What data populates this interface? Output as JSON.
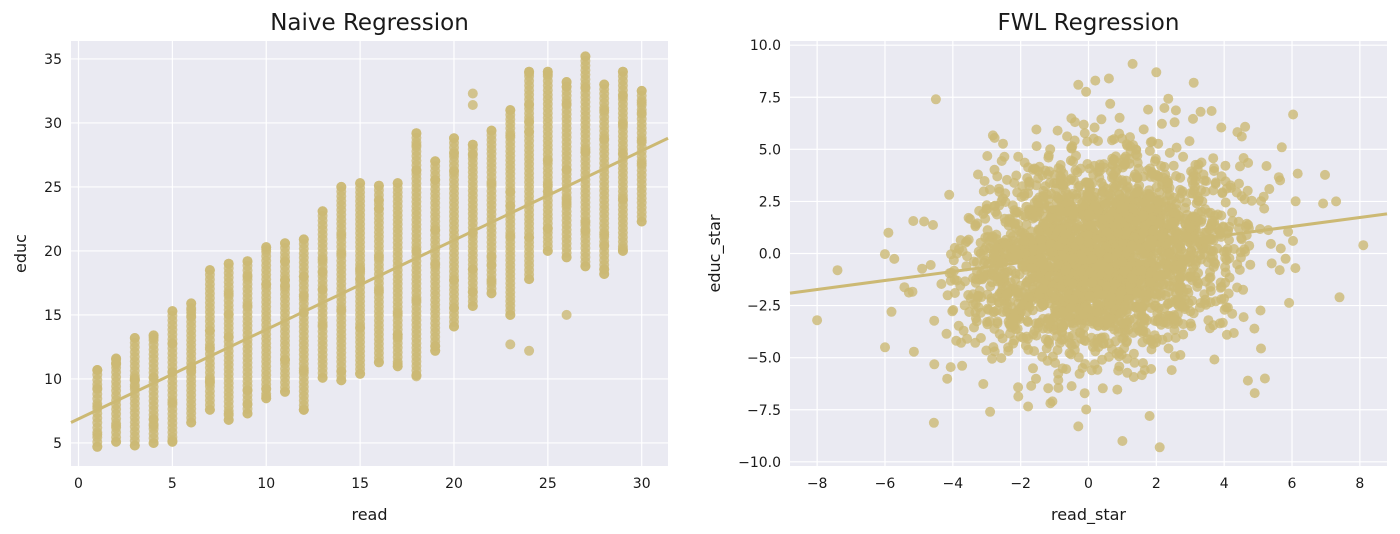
{
  "chart_data": [
    {
      "type": "scatter",
      "title": "Naive Regression",
      "xlabel": "read",
      "ylabel": "educ",
      "xlim": [
        -0.4,
        31.4
      ],
      "ylim": [
        3.2,
        36.4
      ],
      "xticks": [
        0,
        5,
        10,
        15,
        20,
        25,
        30
      ],
      "yticks": [
        5,
        10,
        15,
        20,
        25,
        30,
        35
      ],
      "xtick_labels": [
        "0",
        "5",
        "10",
        "15",
        "20",
        "25",
        "30"
      ],
      "ytick_labels": [
        "5",
        "10",
        "15",
        "20",
        "25",
        "30",
        "35"
      ],
      "grid": true,
      "point_color": "#CCB974",
      "regression_line": {
        "x": [
          -0.4,
          31.4
        ],
        "y": [
          6.6,
          28.8
        ]
      },
      "columns": [
        {
          "x": 1,
          "y": [
            4.7,
            10.7
          ]
        },
        {
          "x": 2,
          "y": [
            5.1,
            11.6
          ]
        },
        {
          "x": 3,
          "y": [
            4.8,
            13.2
          ]
        },
        {
          "x": 4,
          "y": [
            5.0,
            13.4
          ]
        },
        {
          "x": 5,
          "y": [
            5.1,
            15.3
          ]
        },
        {
          "x": 6,
          "y": [
            6.6,
            15.9
          ]
        },
        {
          "x": 7,
          "y": [
            7.6,
            18.5
          ]
        },
        {
          "x": 8,
          "y": [
            6.8,
            19.0
          ]
        },
        {
          "x": 9,
          "y": [
            7.3,
            19.2
          ]
        },
        {
          "x": 10,
          "y": [
            8.5,
            20.3
          ]
        },
        {
          "x": 11,
          "y": [
            9.0,
            20.6
          ]
        },
        {
          "x": 12,
          "y": [
            7.6,
            20.9
          ]
        },
        {
          "x": 13,
          "y": [
            10.1,
            23.1
          ]
        },
        {
          "x": 14,
          "y": [
            9.9,
            25.0
          ]
        },
        {
          "x": 15,
          "y": [
            10.4,
            25.3
          ]
        },
        {
          "x": 16,
          "y": [
            11.3,
            25.1
          ]
        },
        {
          "x": 17,
          "y": [
            11.0,
            25.3
          ]
        },
        {
          "x": 18,
          "y": [
            10.3,
            29.2
          ]
        },
        {
          "x": 19,
          "y": [
            12.2,
            27.0
          ]
        },
        {
          "x": 20,
          "y": [
            14.1,
            28.8
          ]
        },
        {
          "x": 21,
          "y": [
            15.7,
            28.3
          ]
        },
        {
          "x": 22,
          "y": [
            16.7,
            29.4
          ]
        },
        {
          "x": 23,
          "y": [
            15.0,
            31.0
          ]
        },
        {
          "x": 24,
          "y": [
            17.8,
            34.0
          ]
        },
        {
          "x": 25,
          "y": [
            20.0,
            34.0
          ]
        },
        {
          "x": 26,
          "y": [
            19.5,
            33.2
          ]
        },
        {
          "x": 27,
          "y": [
            18.8,
            35.2
          ]
        },
        {
          "x": 28,
          "y": [
            18.2,
            33.0
          ]
        },
        {
          "x": 29,
          "y": [
            20.0,
            34.0
          ]
        },
        {
          "x": 30,
          "y": [
            22.3,
            32.5
          ]
        }
      ],
      "extra_points": [
        {
          "x": 24,
          "y": 33.9
        },
        {
          "x": 24,
          "y": 12.2
        },
        {
          "x": 23,
          "y": 12.7
        },
        {
          "x": 26,
          "y": 15.0
        },
        {
          "x": 21,
          "y": 31.4
        },
        {
          "x": 25,
          "y": 33.8
        },
        {
          "x": 26,
          "y": 31.5
        },
        {
          "x": 27,
          "y": 32.8
        },
        {
          "x": 28,
          "y": 31.0
        },
        {
          "x": 29,
          "y": 32.1
        },
        {
          "x": 21,
          "y": 32.3
        },
        {
          "x": 12,
          "y": 7.6
        },
        {
          "x": 18,
          "y": 10.2
        }
      ]
    },
    {
      "type": "scatter",
      "title": "FWL Regression",
      "xlabel": "read_star",
      "ylabel": "educ_star",
      "xlim": [
        -8.8,
        8.8
      ],
      "ylim": [
        -10.2,
        10.2
      ],
      "xticks": [
        -8,
        -6,
        -4,
        -2,
        0,
        2,
        4,
        6,
        8
      ],
      "yticks": [
        -10,
        -7.5,
        -5,
        -2.5,
        0,
        2.5,
        5,
        7.5,
        10
      ],
      "xtick_labels": [
        "−8",
        "−6",
        "−4",
        "−2",
        "0",
        "2",
        "4",
        "6",
        "8"
      ],
      "ytick_labels": [
        "−10.0",
        "−7.5",
        "−5.0",
        "−2.5",
        "0.0",
        "2.5",
        "5.0",
        "7.5",
        "10.0"
      ],
      "grid": true,
      "point_color": "#CCB974",
      "regression_line": {
        "x": [
          -8.8,
          8.8
        ],
        "y": [
          -1.9,
          1.9
        ]
      },
      "cloud": {
        "center_x": 0.4,
        "center_y": 0.0,
        "spread_x": 1.9,
        "spread_y": 2.4,
        "slope": 0.216
      },
      "extra_points": [
        {
          "x": -8.0,
          "y": -3.2
        },
        {
          "x": 8.1,
          "y": 0.4
        },
        {
          "x": -4.5,
          "y": 7.4
        },
        {
          "x": 1.3,
          "y": 9.1
        },
        {
          "x": 2.0,
          "y": 8.7
        },
        {
          "x": 2.1,
          "y": -9.3
        },
        {
          "x": 1.8,
          "y": -7.8
        },
        {
          "x": 7.4,
          "y": -2.1
        },
        {
          "x": 7.3,
          "y": 2.5
        },
        {
          "x": 5.2,
          "y": -6.0
        },
        {
          "x": 4.9,
          "y": -6.7
        },
        {
          "x": -2.9,
          "y": -7.6
        },
        {
          "x": -6.0,
          "y": -4.5
        },
        {
          "x": 0.6,
          "y": 8.4
        },
        {
          "x": -0.3,
          "y": 8.1
        },
        {
          "x": 6.1,
          "y": -0.7
        },
        {
          "x": 3.1,
          "y": 8.2
        },
        {
          "x": -7.4,
          "y": -0.8
        },
        {
          "x": -5.9,
          "y": 1.0
        },
        {
          "x": 5.7,
          "y": 5.1
        },
        {
          "x": -0.3,
          "y": -8.3
        },
        {
          "x": 0.2,
          "y": 8.3
        },
        {
          "x": 4.7,
          "y": -6.1
        },
        {
          "x": 1.0,
          "y": -9.0
        }
      ]
    }
  ]
}
